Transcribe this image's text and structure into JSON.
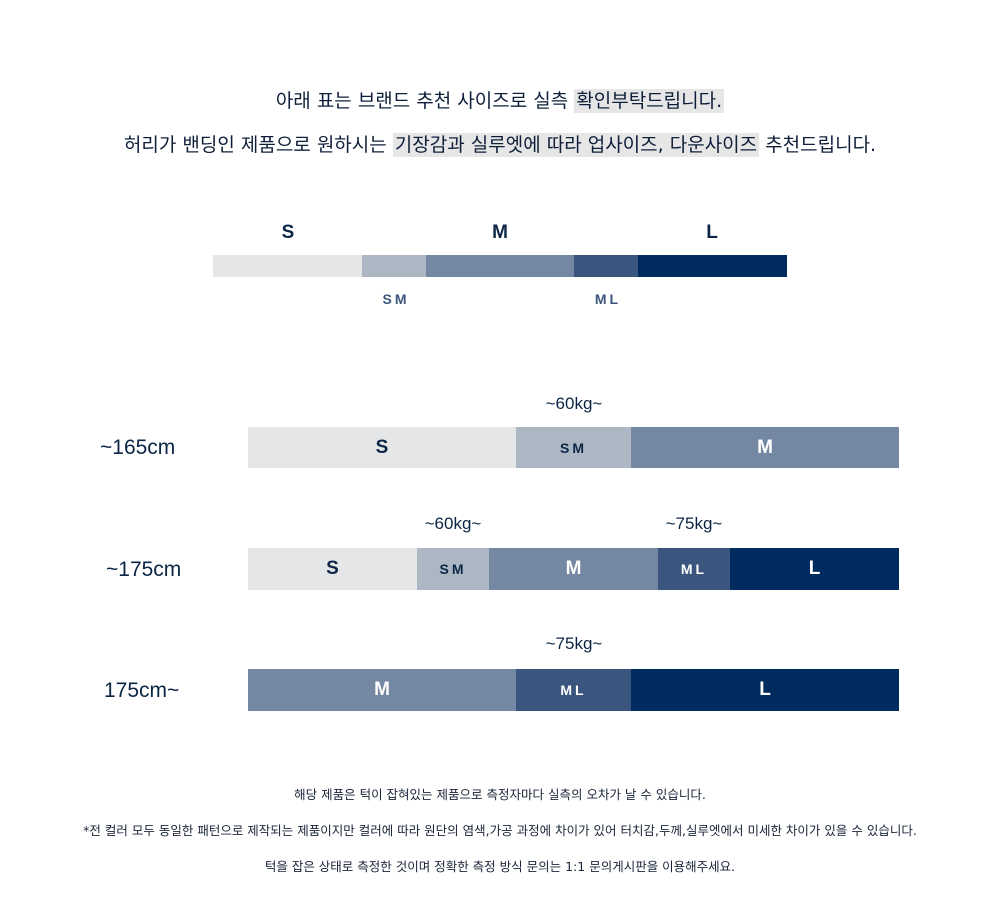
{
  "intro": {
    "line1_a": "아래 표는 브랜드 추천 사이즈로 실측 ",
    "line1_hl": "확인부탁드립니다.",
    "line2_a": "허리가 밴딩인 제품으로 원하시는 ",
    "line2_hl1": "기장감과 실루엣에 따라 업사이즈, 다운사이즈",
    "line2_b": " 추천드립니다."
  },
  "legend": {
    "labels": [
      "S",
      "M",
      "L"
    ],
    "sublabels": [
      "SM",
      "ML"
    ]
  },
  "rows": [
    {
      "height": "~165cm",
      "weights": [
        "~60kg~"
      ],
      "segments": [
        "S",
        "SM",
        "M"
      ]
    },
    {
      "height": "~175cm",
      "weights": [
        "~60kg~",
        "~75kg~"
      ],
      "segments": [
        "S",
        "SM",
        "M",
        "ML",
        "L"
      ]
    },
    {
      "height": "175cm~",
      "weights": [
        "~75kg~"
      ],
      "segments": [
        "M",
        "ML",
        "L"
      ]
    }
  ],
  "colors": {
    "S": "#e5e6e8",
    "SM": "#adb7c4",
    "M": "#7588a3",
    "ML": "#3b567e",
    "L": "#002b5e"
  },
  "notes": [
    "해당 제품은 턱이 잡혀있는 제품으로 측정자마다 실측의 오차가 날 수 있습니다.",
    "*전 컬러 모두 동일한 패턴으로 제작되는 제품이지만 컬러에 따라 원단의 염색,가공 과정에 차이가 있어 터치감,두께,실루엣에서 미세한 차이가 있을 수 있습니다.",
    "턱을 잡은 상태로 측정한 것이며 정확한 측정 방식 문의는 1:1 문의게시판을 이용해주세요."
  ]
}
